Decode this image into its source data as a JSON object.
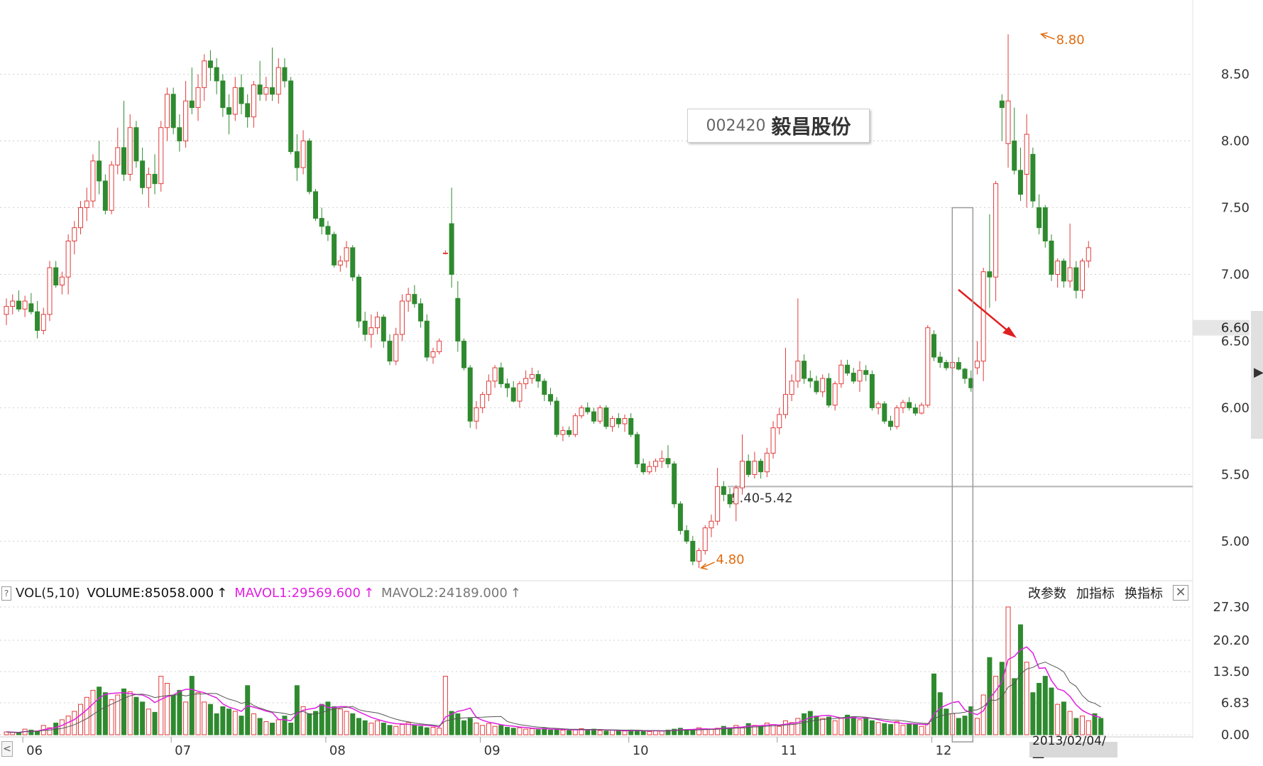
{
  "stock": {
    "code": "002420",
    "name": "毅昌股份"
  },
  "volume_header": {
    "indicator": "VOL(5,10)",
    "volume": "VOLUME:85058.000",
    "mavol1": "MAVOL1:29569.600",
    "mavol2": "MAVOL2:24189.000",
    "arrow": "↑"
  },
  "tools": {
    "change_params": "改参数",
    "add_indicator": "加指标",
    "switch_indicator": "换指标",
    "close": "✕",
    "help": "?"
  },
  "date_box": "2013/02/04/一",
  "nav_left": "<",
  "colors": {
    "up": "#e03a3a",
    "down": "#2f8a2f",
    "ma1": "#e020e0",
    "ma2": "#555555",
    "grid": "#cfcfcf",
    "annotation": "#e06c10"
  },
  "chart_data": [
    {
      "type": "candlestick",
      "title": "",
      "y_ticks": [
        "8.50",
        "8.00",
        "7.50",
        "7.00",
        "6.50",
        "6.00",
        "5.50",
        "5.00"
      ],
      "ylim": [
        4.72,
        8.95
      ],
      "current_price": "6.60",
      "x_labels": [
        "06",
        "07",
        "08",
        "09",
        "10",
        "11",
        "12",
        "2013"
      ],
      "x_label_index": [
        3,
        27,
        52,
        77,
        101,
        125,
        150,
        174
      ],
      "grid": true,
      "annotations": {
        "high": "8.80",
        "low": "4.80",
        "support": "5.40-5.42",
        "support_price": 5.41,
        "low_price": 4.8,
        "high_price": 8.8
      },
      "candles": [
        [
          6.7,
          6.82,
          6.62,
          6.76
        ],
        [
          6.76,
          6.85,
          6.7,
          6.8
        ],
        [
          6.8,
          6.88,
          6.72,
          6.74
        ],
        [
          6.74,
          6.84,
          6.68,
          6.8
        ],
        [
          6.78,
          6.86,
          6.7,
          6.72
        ],
        [
          6.72,
          6.8,
          6.52,
          6.58
        ],
        [
          6.58,
          6.75,
          6.55,
          6.7
        ],
        [
          6.7,
          7.1,
          6.65,
          7.05
        ],
        [
          7.05,
          7.1,
          6.9,
          6.92
        ],
        [
          6.92,
          7.02,
          6.85,
          6.98
        ],
        [
          6.98,
          7.3,
          6.85,
          7.25
        ],
        [
          7.25,
          7.4,
          7.15,
          7.35
        ],
        [
          7.35,
          7.55,
          7.3,
          7.5
        ],
        [
          7.5,
          7.65,
          7.4,
          7.55
        ],
        [
          7.55,
          7.9,
          7.5,
          7.85
        ],
        [
          7.85,
          8.0,
          7.6,
          7.7
        ],
        [
          7.7,
          7.75,
          7.45,
          7.48
        ],
        [
          7.48,
          7.85,
          7.45,
          7.82
        ],
        [
          7.82,
          8.1,
          7.75,
          7.95
        ],
        [
          7.95,
          8.3,
          7.7,
          7.75
        ],
        [
          7.75,
          8.2,
          7.7,
          8.1
        ],
        [
          8.1,
          8.15,
          7.8,
          7.85
        ],
        [
          7.85,
          7.95,
          7.6,
          7.65
        ],
        [
          7.65,
          7.8,
          7.5,
          7.75
        ],
        [
          7.75,
          7.9,
          7.6,
          7.68
        ],
        [
          7.68,
          8.15,
          7.62,
          8.1
        ],
        [
          8.1,
          8.4,
          8.0,
          8.35
        ],
        [
          8.35,
          8.4,
          8.05,
          8.1
        ],
        [
          8.1,
          8.2,
          7.92,
          8.0
        ],
        [
          8.0,
          8.45,
          7.95,
          8.3
        ],
        [
          8.3,
          8.55,
          8.2,
          8.25
        ],
        [
          8.25,
          8.5,
          8.15,
          8.4
        ],
        [
          8.4,
          8.65,
          8.3,
          8.6
        ],
        [
          8.6,
          8.68,
          8.45,
          8.55
        ],
        [
          8.55,
          8.62,
          8.35,
          8.45
        ],
        [
          8.45,
          8.5,
          8.18,
          8.25
        ],
        [
          8.25,
          8.35,
          8.05,
          8.2
        ],
        [
          8.2,
          8.48,
          8.15,
          8.4
        ],
        [
          8.4,
          8.5,
          8.2,
          8.28
        ],
        [
          8.28,
          8.35,
          8.1,
          8.18
        ],
        [
          8.18,
          8.45,
          8.1,
          8.42
        ],
        [
          8.42,
          8.6,
          8.3,
          8.35
        ],
        [
          8.35,
          8.48,
          8.3,
          8.4
        ],
        [
          8.4,
          8.7,
          8.3,
          8.35
        ],
        [
          8.35,
          8.62,
          8.28,
          8.55
        ],
        [
          8.55,
          8.62,
          8.4,
          8.45
        ],
        [
          8.45,
          8.48,
          7.9,
          7.92
        ],
        [
          7.92,
          8.05,
          7.7,
          7.8
        ],
        [
          7.8,
          8.08,
          7.75,
          8.0
        ],
        [
          8.0,
          8.02,
          7.6,
          7.62
        ],
        [
          7.62,
          7.64,
          7.4,
          7.42
        ],
        [
          7.42,
          7.5,
          7.3,
          7.36
        ],
        [
          7.36,
          7.4,
          7.25,
          7.3
        ],
        [
          7.3,
          7.32,
          7.05,
          7.07
        ],
        [
          7.07,
          7.14,
          7.02,
          7.1
        ],
        [
          7.1,
          7.25,
          7.05,
          7.2
        ],
        [
          7.2,
          7.22,
          6.95,
          6.98
        ],
        [
          6.98,
          7.0,
          6.6,
          6.65
        ],
        [
          6.65,
          6.72,
          6.5,
          6.55
        ],
        [
          6.55,
          6.7,
          6.45,
          6.6
        ],
        [
          6.6,
          6.72,
          6.55,
          6.68
        ],
        [
          6.68,
          6.7,
          6.45,
          6.5
        ],
        [
          6.5,
          6.55,
          6.32,
          6.35
        ],
        [
          6.35,
          6.6,
          6.32,
          6.55
        ],
        [
          6.55,
          6.85,
          6.5,
          6.8
        ],
        [
          6.8,
          6.9,
          6.72,
          6.85
        ],
        [
          6.85,
          6.92,
          6.75,
          6.78
        ],
        [
          6.78,
          6.82,
          6.6,
          6.65
        ],
        [
          6.65,
          6.7,
          6.35,
          6.38
        ],
        [
          6.38,
          6.45,
          6.33,
          6.42
        ],
        [
          6.42,
          6.52,
          6.4,
          6.5
        ],
        [
          7.16,
          7.18,
          7.15,
          7.16
        ],
        [
          7.38,
          7.65,
          6.9,
          7.0
        ],
        [
          6.82,
          6.95,
          6.42,
          6.5
        ],
        [
          6.5,
          6.52,
          6.28,
          6.3
        ],
        [
          6.3,
          6.32,
          5.85,
          5.9
        ],
        [
          5.9,
          6.05,
          5.84,
          6.0
        ],
        [
          6.0,
          6.12,
          5.96,
          6.1
        ],
        [
          6.1,
          6.25,
          6.05,
          6.2
        ],
        [
          6.2,
          6.32,
          6.15,
          6.3
        ],
        [
          6.3,
          6.34,
          6.15,
          6.18
        ],
        [
          6.18,
          6.22,
          6.08,
          6.15
        ],
        [
          6.15,
          6.2,
          6.04,
          6.05
        ],
        [
          6.05,
          6.2,
          6.0,
          6.18
        ],
        [
          6.18,
          6.28,
          6.14,
          6.22
        ],
        [
          6.22,
          6.3,
          6.18,
          6.25
        ],
        [
          6.25,
          6.28,
          6.15,
          6.2
        ],
        [
          6.2,
          6.22,
          6.05,
          6.1
        ],
        [
          6.1,
          6.15,
          6.02,
          6.05
        ],
        [
          6.05,
          6.08,
          5.78,
          5.8
        ],
        [
          5.8,
          5.86,
          5.75,
          5.83
        ],
        [
          5.83,
          5.86,
          5.78,
          5.8
        ],
        [
          5.8,
          5.96,
          5.78,
          5.94
        ],
        [
          5.94,
          6.02,
          5.92,
          6.0
        ],
        [
          6.0,
          6.04,
          5.95,
          5.97
        ],
        [
          5.97,
          6.0,
          5.88,
          5.9
        ],
        [
          5.9,
          6.02,
          5.88,
          6.0
        ],
        [
          6.0,
          6.02,
          5.84,
          5.86
        ],
        [
          5.86,
          5.94,
          5.82,
          5.92
        ],
        [
          5.92,
          5.96,
          5.85,
          5.88
        ],
        [
          5.88,
          5.95,
          5.82,
          5.92
        ],
        [
          5.92,
          5.96,
          5.78,
          5.8
        ],
        [
          5.8,
          5.82,
          5.55,
          5.58
        ],
        [
          5.58,
          5.62,
          5.5,
          5.52
        ],
        [
          5.52,
          5.6,
          5.5,
          5.56
        ],
        [
          5.56,
          5.62,
          5.52,
          5.6
        ],
        [
          5.6,
          5.68,
          5.55,
          5.62
        ],
        [
          5.62,
          5.72,
          5.55,
          5.58
        ],
        [
          5.58,
          5.6,
          5.25,
          5.28
        ],
        [
          5.28,
          5.3,
          5.05,
          5.08
        ],
        [
          5.08,
          5.12,
          4.98,
          5.0
        ],
        [
          5.0,
          5.04,
          4.82,
          4.85
        ],
        [
          4.85,
          4.95,
          4.8,
          4.93
        ],
        [
          4.93,
          5.12,
          4.9,
          5.1
        ],
        [
          5.1,
          5.2,
          5.03,
          5.15
        ],
        [
          5.15,
          5.55,
          5.12,
          5.41
        ],
        [
          5.41,
          5.45,
          5.3,
          5.35
        ],
        [
          5.35,
          5.4,
          5.25,
          5.28
        ],
        [
          5.28,
          5.42,
          5.15,
          5.4
        ],
        [
          5.4,
          5.8,
          5.35,
          5.6
        ],
        [
          5.6,
          5.65,
          5.48,
          5.5
        ],
        [
          5.5,
          5.67,
          5.47,
          5.6
        ],
        [
          5.6,
          5.62,
          5.47,
          5.52
        ],
        [
          5.52,
          5.7,
          5.48,
          5.66
        ],
        [
          5.66,
          5.9,
          5.62,
          5.85
        ],
        [
          5.85,
          6.0,
          5.8,
          5.95
        ],
        [
          5.95,
          6.45,
          5.92,
          6.1
        ],
        [
          6.1,
          6.25,
          6.05,
          6.2
        ],
        [
          6.2,
          6.82,
          6.15,
          6.35
        ],
        [
          6.35,
          6.4,
          6.18,
          6.22
        ],
        [
          6.22,
          6.28,
          6.15,
          6.2
        ],
        [
          6.2,
          6.24,
          6.1,
          6.12
        ],
        [
          6.12,
          6.25,
          6.08,
          6.22
        ],
        [
          6.22,
          6.26,
          6.0,
          6.02
        ],
        [
          6.02,
          6.2,
          5.98,
          6.18
        ],
        [
          6.18,
          6.36,
          6.15,
          6.32
        ],
        [
          6.32,
          6.36,
          6.24,
          6.26
        ],
        [
          6.26,
          6.3,
          6.18,
          6.2
        ],
        [
          6.2,
          6.35,
          6.12,
          6.28
        ],
        [
          6.28,
          6.32,
          6.2,
          6.25
        ],
        [
          6.25,
          6.28,
          5.98,
          6.0
        ],
        [
          6.0,
          6.05,
          5.95,
          6.03
        ],
        [
          6.03,
          6.05,
          5.88,
          5.9
        ],
        [
          5.9,
          5.94,
          5.83,
          5.86
        ],
        [
          5.86,
          6.02,
          5.84,
          6.0
        ],
        [
          6.0,
          6.06,
          5.96,
          6.04
        ],
        [
          6.04,
          6.08,
          5.98,
          6.0
        ],
        [
          6.0,
          6.03,
          5.94,
          5.96
        ],
        [
          5.96,
          6.04,
          5.95,
          6.02
        ],
        [
          6.02,
          6.62,
          6.0,
          6.6
        ],
        [
          6.55,
          6.58,
          6.35,
          6.38
        ],
        [
          6.38,
          6.42,
          6.3,
          6.34
        ],
        [
          6.34,
          6.36,
          6.28,
          6.3
        ],
        [
          6.3,
          6.36,
          6.24,
          6.34
        ],
        [
          6.34,
          6.38,
          6.28,
          6.29
        ],
        [
          6.29,
          6.3,
          6.18,
          6.22
        ],
        [
          6.22,
          6.28,
          6.12,
          6.15
        ],
        [
          6.3,
          6.5,
          6.25,
          6.35
        ],
        [
          6.35,
          7.05,
          6.2,
          7.02
        ],
        [
          7.02,
          7.45,
          6.75,
          6.98
        ],
        [
          6.98,
          7.7,
          6.8,
          7.68
        ],
        [
          8.3,
          8.35,
          8.0,
          8.25
        ],
        [
          7.98,
          8.8,
          7.8,
          8.3
        ],
        [
          8.0,
          8.25,
          7.75,
          7.78
        ],
        [
          7.78,
          7.95,
          7.55,
          7.6
        ],
        [
          7.75,
          8.2,
          7.5,
          8.05
        ],
        [
          7.9,
          7.95,
          7.5,
          7.55
        ],
        [
          7.5,
          7.6,
          7.3,
          7.35
        ],
        [
          7.5,
          7.52,
          7.2,
          7.25
        ],
        [
          7.25,
          7.3,
          6.95,
          7.0
        ],
        [
          7.0,
          7.12,
          6.9,
          7.1
        ],
        [
          7.1,
          7.12,
          6.9,
          6.95
        ],
        [
          6.95,
          7.38,
          6.9,
          7.05
        ],
        [
          7.05,
          7.1,
          6.82,
          6.88
        ],
        [
          6.88,
          7.12,
          6.82,
          7.1
        ],
        [
          7.1,
          7.25,
          7.05,
          7.2
        ]
      ]
    },
    {
      "type": "bar",
      "title": "",
      "y_ticks": [
        "27.30",
        "20.20",
        "13.50",
        "6.83",
        "0.00"
      ],
      "ylim": [
        0,
        27.3
      ],
      "grid": true,
      "volumes": [
        0.6,
        0.5,
        0.4,
        1.2,
        1.0,
        0.8,
        2.0,
        1.5,
        2.5,
        3.2,
        4.0,
        5.0,
        6.5,
        8.0,
        9.5,
        10.2,
        9.0,
        7.5,
        8.5,
        9.8,
        9.2,
        8.0,
        7.0,
        5.5,
        4.8,
        12.5,
        11.0,
        8.5,
        9.5,
        7.0,
        12.5,
        9.0,
        7.0,
        6.5,
        4.5,
        6.0,
        5.5,
        5.0,
        4.0,
        10.5,
        4.5,
        3.5,
        2.8,
        2.5,
        3.2,
        4.0,
        2.5,
        10.5,
        6.0,
        4.5,
        5.0,
        6.5,
        7.0,
        6.0,
        5.5,
        5.0,
        4.5,
        3.5,
        3.0,
        2.5,
        3.0,
        2.5,
        2.0,
        1.8,
        2.2,
        2.6,
        2.0,
        1.8,
        1.5,
        1.6,
        1.4,
        12.5,
        5.0,
        4.5,
        3.0,
        3.5,
        2.5,
        2.0,
        2.4,
        1.8,
        2.0,
        1.6,
        1.4,
        1.5,
        1.2,
        1.3,
        1.1,
        1.4,
        1.0,
        1.2,
        1.0,
        0.9,
        1.1,
        1.3,
        1.0,
        1.2,
        0.9,
        0.8,
        1.0,
        0.9,
        0.8,
        1.0,
        0.9,
        0.8,
        0.7,
        0.9,
        0.8,
        1.0,
        1.2,
        1.4,
        1.1,
        1.0,
        1.5,
        1.3,
        1.2,
        1.4,
        1.8,
        1.5,
        2.0,
        1.6,
        2.4,
        2.0,
        1.8,
        2.5,
        2.2,
        1.8,
        3.0,
        2.6,
        3.5,
        4.5,
        5.0,
        4.0,
        3.5,
        3.8,
        3.0,
        3.5,
        4.2,
        3.8,
        3.2,
        3.5,
        3.0,
        2.6,
        2.4,
        2.2,
        2.8,
        2.0,
        2.4,
        2.2,
        1.8,
        2.4,
        13.0,
        9.0,
        5.5,
        4.5,
        3.5,
        4.0,
        6.0,
        3.5,
        8.5,
        16.5,
        12.5,
        15.5,
        27.3,
        12.0,
        23.5,
        15.5,
        9.0,
        11.0,
        12.5,
        10.0,
        6.5,
        7.0,
        5.0,
        3.5,
        4.0,
        3.0,
        4.5,
        3.5
      ]
    }
  ]
}
